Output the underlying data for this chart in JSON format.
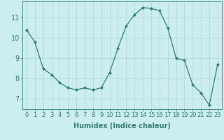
{
  "x": [
    0,
    1,
    2,
    3,
    4,
    5,
    6,
    7,
    8,
    9,
    10,
    11,
    12,
    13,
    14,
    15,
    16,
    17,
    18,
    19,
    20,
    21,
    22,
    23
  ],
  "y": [
    10.4,
    9.8,
    8.5,
    8.2,
    7.8,
    7.55,
    7.45,
    7.55,
    7.45,
    7.55,
    8.3,
    9.5,
    10.6,
    11.15,
    11.5,
    11.45,
    11.35,
    10.5,
    9.0,
    8.9,
    7.7,
    7.3,
    6.7,
    8.7
  ],
  "line_color": "#2e7d6e",
  "marker": "D",
  "marker_size": 2,
  "bg_color": "#cceef0",
  "grid_color": "#aadddd",
  "xlabel": "Humidex (Indice chaleur)",
  "xlim": [
    -0.5,
    23.5
  ],
  "ylim": [
    6.5,
    11.8
  ],
  "yticks": [
    7,
    8,
    9,
    10,
    11
  ],
  "xticks": [
    0,
    1,
    2,
    3,
    4,
    5,
    6,
    7,
    8,
    9,
    10,
    11,
    12,
    13,
    14,
    15,
    16,
    17,
    18,
    19,
    20,
    21,
    22,
    23
  ],
  "tick_color": "#2e7d6e",
  "axis_color": "#2e7d6e",
  "xlabel_fontsize": 7,
  "tick_fontsize": 6,
  "ytick_fontsize": 7
}
